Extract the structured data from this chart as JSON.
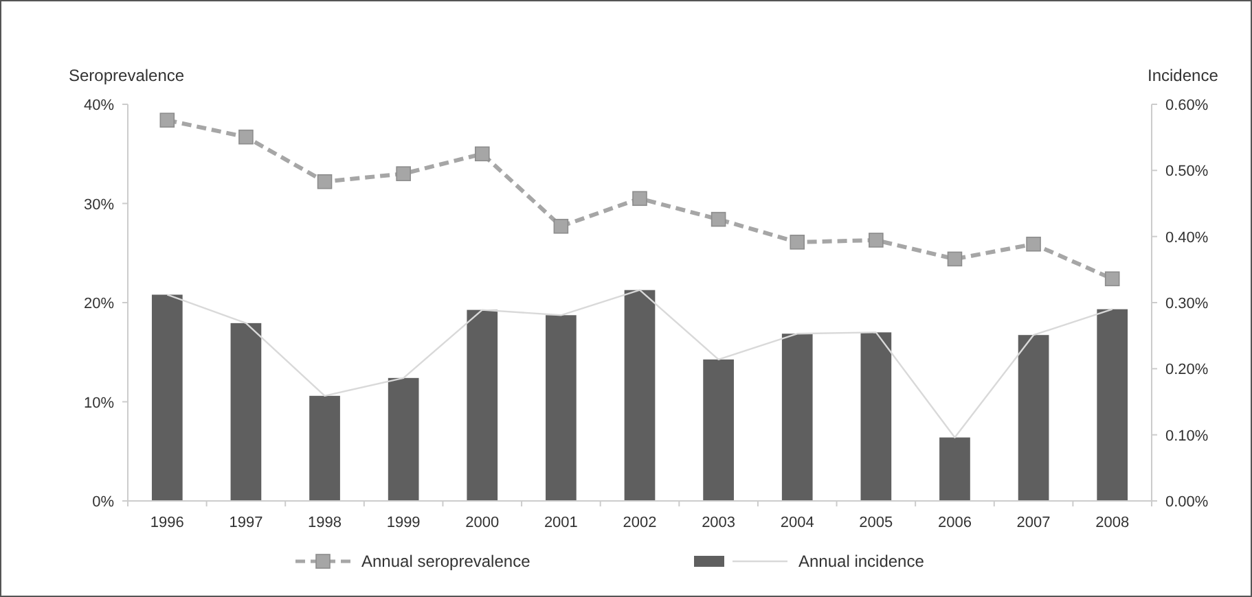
{
  "chart_data": {
    "type": "bar",
    "ylabel": "Seroprevalence",
    "y2label": "Incidence",
    "categories": [
      "1996",
      "1997",
      "1998",
      "1999",
      "2000",
      "2001",
      "2002",
      "2003",
      "2004",
      "2005",
      "2006",
      "2007",
      "2008"
    ],
    "series": [
      {
        "type": "line",
        "name": "Annual seroprevalence",
        "color": "#a6a6a6",
        "marker": "square",
        "line_style": "dashed",
        "values": [
          38.4,
          36.7,
          32.2,
          33.0,
          35.0,
          27.7,
          30.5,
          28.4,
          26.1,
          26.3,
          24.4,
          25.9,
          22.4
        ]
      },
      {
        "color": "#5f5f5f",
        "axis": "y2",
        "values": [
          0.312,
          0.269,
          0.159,
          0.186,
          0.289,
          0.281,
          0.319,
          0.214,
          0.253,
          0.255,
          0.096,
          0.251,
          0.29
        ]
      },
      {
        "type": "line",
        "name": "Annual incidence",
        "color": "#d9d9d9",
        "axis": "y2",
        "marker": "none",
        "line_style": "solid",
        "values": [
          0.312,
          0.269,
          0.159,
          0.186,
          0.289,
          0.281,
          0.319,
          0.214,
          0.253,
          0.255,
          0.096,
          0.251,
          0.29
        ]
      }
    ],
    "ylim": [
      0,
      40
    ],
    "yticks": [
      {
        "value": 0,
        "label": "0%"
      },
      {
        "value": 10,
        "label": "10%"
      },
      {
        "value": 20,
        "label": "20%"
      },
      {
        "value": 30,
        "label": "30%"
      },
      {
        "value": 40,
        "label": "40%"
      }
    ],
    "y2lim": [
      0,
      0.6
    ],
    "y2ticks": [
      {
        "value": 0,
        "label": "0.00%"
      },
      {
        "value": 0.1,
        "label": "0.10%"
      },
      {
        "value": 0.2,
        "label": "0.20%"
      },
      {
        "value": 0.3,
        "label": "0.30%"
      },
      {
        "value": 0.4,
        "label": "0.40%"
      },
      {
        "value": 0.5,
        "label": "0.50%"
      },
      {
        "value": 0.6,
        "label": "0.60%"
      }
    ],
    "grid": false,
    "legend": "bottom"
  }
}
